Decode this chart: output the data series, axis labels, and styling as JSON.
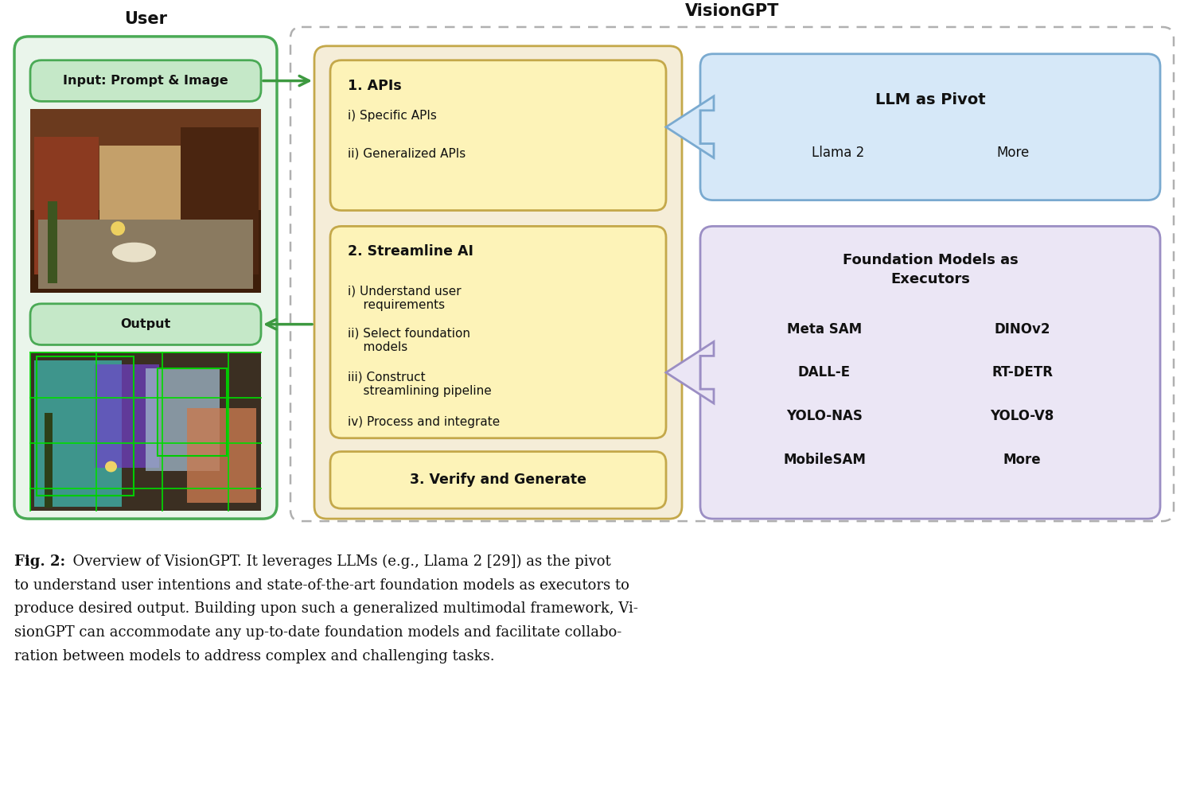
{
  "title_user": "User",
  "title_visiongpt": "VisionGPT",
  "input_label": "Input: Prompt & Image",
  "output_label": "Output",
  "api_title": "1. APIs",
  "api_items": [
    "i) Specific APIs",
    "ii) Generalized APIs"
  ],
  "streamline_title": "2. Streamline AI",
  "streamline_items": [
    "i) Understand user\n   requirements",
    "ii) Select foundation\n   models",
    "iii) Construct\n   streamlining pipeline",
    "iv) Process and integrate"
  ],
  "verify_title": "3. Verify and Generate",
  "llm_title": "LLM as Pivot",
  "llm_items": [
    "Llama 2",
    "More"
  ],
  "foundation_title": "Foundation Models as\nExecutors",
  "foundation_items_col1": [
    "Meta SAM",
    "DALL-E",
    "YOLO-NAS",
    "MobileSAM"
  ],
  "foundation_items_col2": [
    "DINOv2",
    "RT-DETR",
    "YOLO-V8",
    "More"
  ],
  "caption_bold": "Fig. 2:",
  "caption_rest": "  Overview of VisionGPT. It leverages LLMs (e.g., Llama 2 [29]) as the pivot\nto understand user intentions and state-of-the-art foundation models as executors to\nproduce desired output. Building upon such a generalized multimodal framework, Vi-\nsionGPT can accommodate any up-to-date foundation models and facilitate collabo-\nration between models to address complex and challenging tasks.",
  "colors": {
    "bg": "#ffffff",
    "user_box_bg": "#eaf5eb",
    "user_box_border": "#4aaa55",
    "input_box_bg": "#c5e8c8",
    "input_box_border": "#4aaa55",
    "output_box_bg": "#c5e8c8",
    "output_box_border": "#4aaa55",
    "visiongpt_dashed_border": "#aaaaaa",
    "center_outer_bg": "#f5edd8",
    "center_outer_border": "#c4a84a",
    "inner_box_bg": "#fdf3b8",
    "inner_box_border": "#c4a84a",
    "llm_box_bg": "#d6e8f8",
    "llm_box_border": "#7aaad0",
    "foundation_box_bg": "#ebe6f5",
    "foundation_box_border": "#9b8ec4",
    "arrow_green": "#3d9940",
    "arrow_blue": "#5b9bd5",
    "arrow_purple": "#9b8ec4",
    "text_dark": "#111111"
  }
}
